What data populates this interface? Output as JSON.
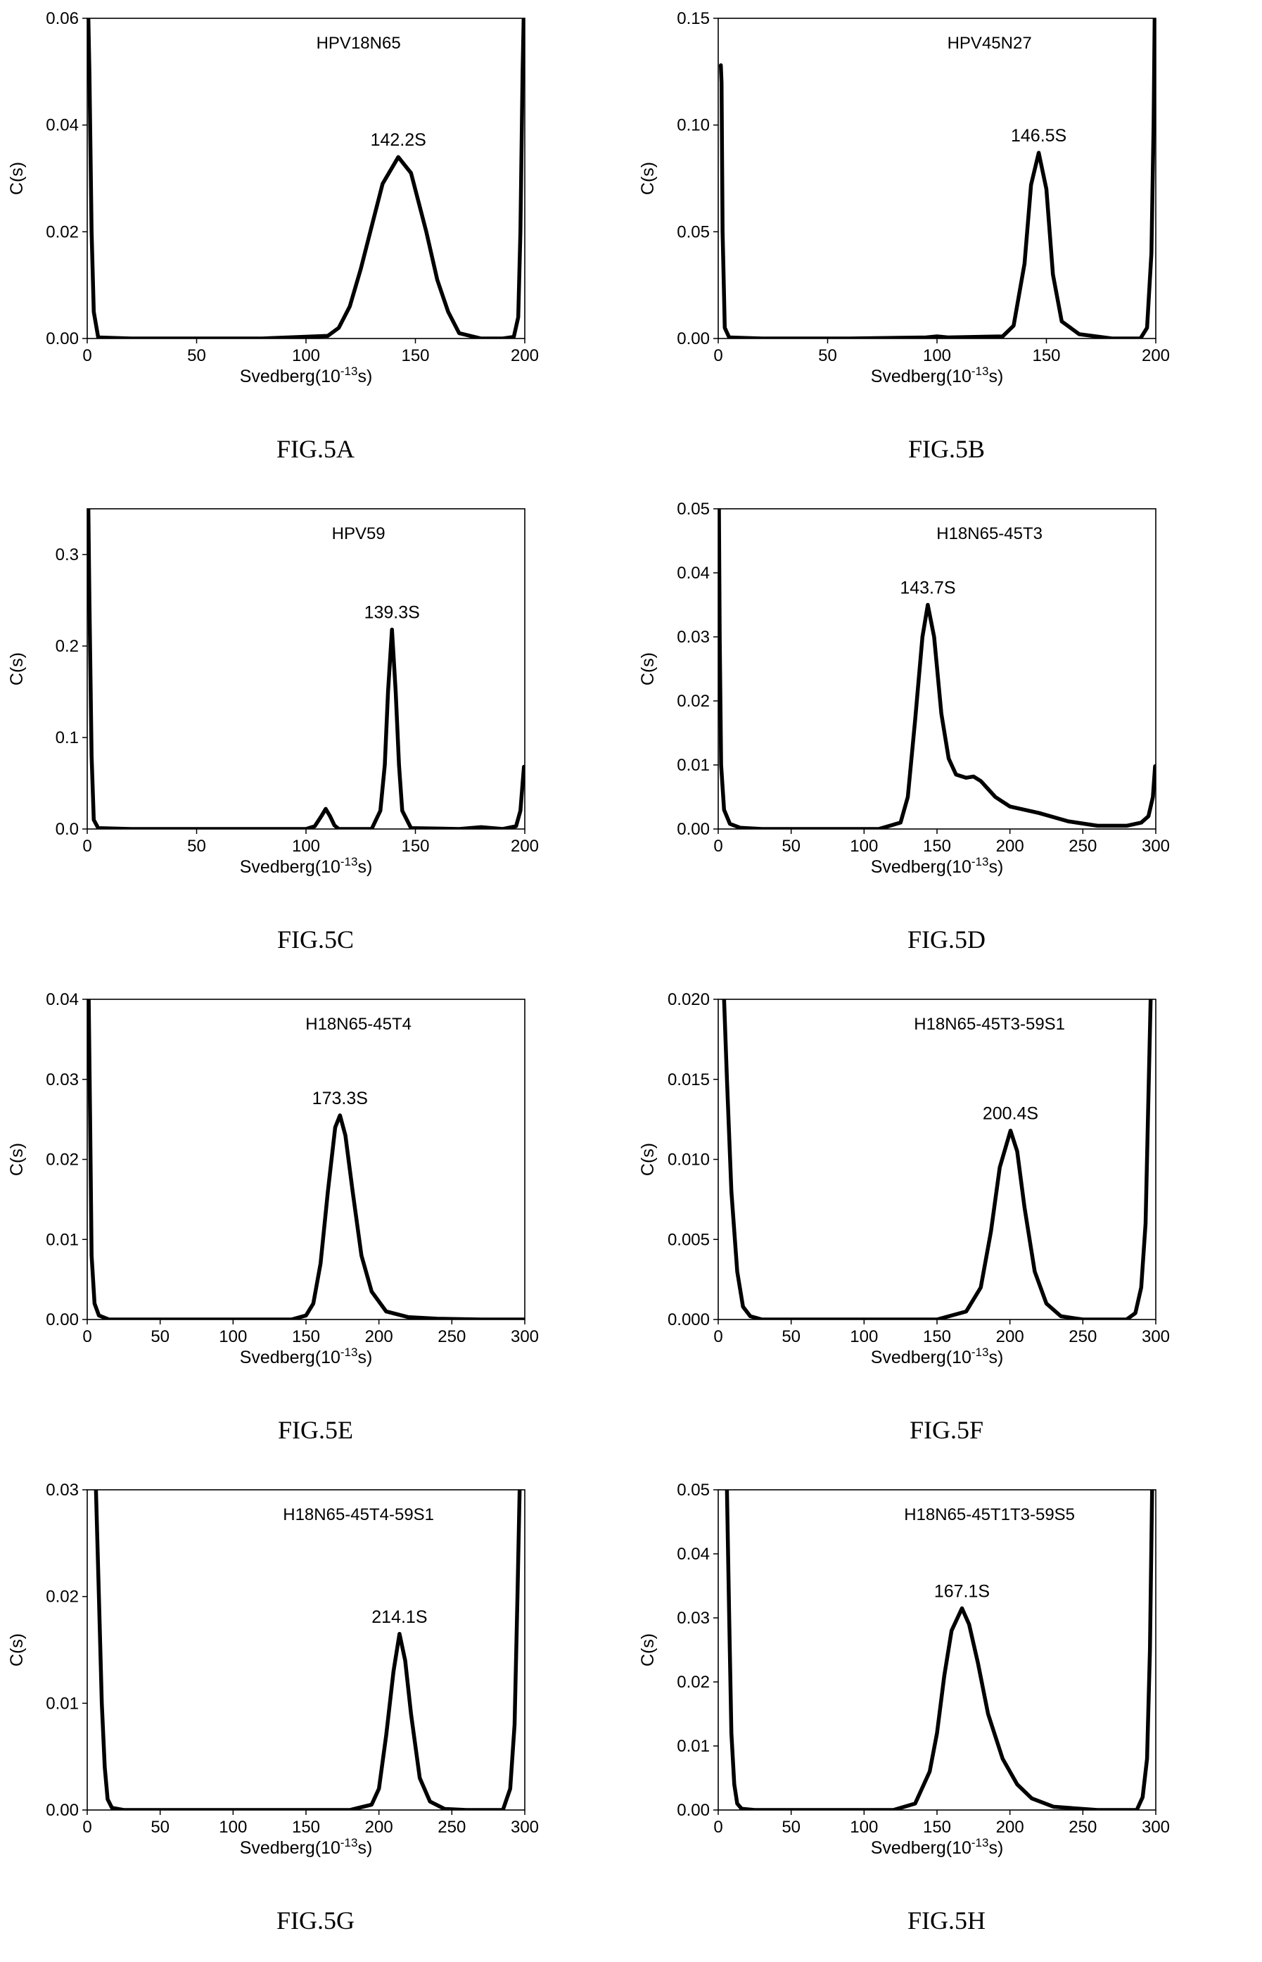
{
  "figure_panels": [
    {
      "caption": "FIG.5A"
    },
    {
      "caption": "FIG.5B"
    },
    {
      "caption": "FIG.5C"
    },
    {
      "caption": "FIG.5D"
    },
    {
      "caption": "FIG.5E"
    },
    {
      "caption": "FIG.5F"
    },
    {
      "caption": "FIG.5G"
    },
    {
      "caption": "FIG.5H"
    }
  ],
  "chart_data": [
    {
      "type": "line",
      "caption": "FIG.5A",
      "sample_label": "HPV18N65",
      "peak_label": "142.2S",
      "xlabel_main": "Svedberg(10",
      "xlabel_exp": "-13",
      "xlabel_tail": "s)",
      "ylabel": "C(s)",
      "xlim": [
        0,
        200
      ],
      "ylim": [
        0,
        0.06
      ],
      "xticks": [
        0,
        50,
        100,
        150,
        200
      ],
      "xtick_labels": [
        "0",
        "50",
        "100",
        "150",
        "200"
      ],
      "yticks": [
        0,
        0.02,
        0.04,
        0.06
      ],
      "ytick_labels": [
        "0.00",
        "0.02",
        "0.04",
        "0.06"
      ],
      "series": [
        {
          "x": [
            0.5,
            1,
            2,
            3,
            5,
            20,
            80,
            110,
            115,
            120,
            125,
            130,
            135,
            142.2,
            148,
            155,
            160,
            165,
            170,
            180,
            190,
            195,
            197,
            198,
            199,
            199.5
          ],
          "y": [
            0.06,
            0.05,
            0.02,
            0.005,
            0.0002,
            0,
            0,
            0.0005,
            0.002,
            0.006,
            0.013,
            0.021,
            0.029,
            0.034,
            0.031,
            0.02,
            0.011,
            0.005,
            0.001,
            0,
            0,
            0.0003,
            0.004,
            0.02,
            0.05,
            0.06
          ]
        }
      ]
    },
    {
      "type": "line",
      "caption": "FIG.5B",
      "sample_label": "HPV45N27",
      "peak_label": "146.5S",
      "xlabel_main": "Svedberg(10",
      "xlabel_exp": "-13",
      "xlabel_tail": "s)",
      "ylabel": "C(s)",
      "xlim": [
        0,
        200
      ],
      "ylim": [
        0,
        0.15
      ],
      "xticks": [
        0,
        50,
        100,
        150,
        200
      ],
      "xtick_labels": [
        "0",
        "50",
        "100",
        "150",
        "200"
      ],
      "yticks": [
        0,
        0.05,
        0.1,
        0.15
      ],
      "ytick_labels": [
        "0.00",
        "0.05",
        "0.10",
        "0.15"
      ],
      "series": [
        {
          "x": [
            1.2,
            1.5,
            2,
            3,
            5,
            20,
            60,
            95,
            100,
            105,
            130,
            135,
            140,
            143,
            146.5,
            150,
            153,
            157,
            165,
            180,
            193,
            196,
            198,
            199,
            199.5
          ],
          "y": [
            0.128,
            0.12,
            0.05,
            0.005,
            0.0005,
            0,
            0,
            0.0005,
            0.001,
            0.0005,
            0.001,
            0.006,
            0.035,
            0.072,
            0.087,
            0.07,
            0.03,
            0.008,
            0.002,
            0,
            0,
            0.005,
            0.04,
            0.1,
            0.15
          ]
        }
      ]
    },
    {
      "type": "line",
      "caption": "FIG.5C",
      "sample_label": "HPV59",
      "peak_label": "139.3S",
      "xlabel_main": "Svedberg(10",
      "xlabel_exp": "-13",
      "xlabel_tail": "s)",
      "ylabel": "C(s)",
      "xlim": [
        0,
        200
      ],
      "ylim": [
        0,
        0.35
      ],
      "xticks": [
        0,
        50,
        100,
        150,
        200
      ],
      "xtick_labels": [
        "0",
        "50",
        "100",
        "150",
        "200"
      ],
      "yticks": [
        0,
        0.1,
        0.2,
        0.3
      ],
      "ytick_labels": [
        "0.0",
        "0.1",
        "0.2",
        "0.3"
      ],
      "series": [
        {
          "x": [
            0.5,
            1,
            2,
            3,
            5,
            20,
            100,
            104,
            107,
            109,
            111,
            113,
            115,
            130,
            134,
            136,
            137.5,
            139.3,
            141,
            142.5,
            144,
            148,
            170,
            180,
            190,
            196,
            198,
            199,
            199.6
          ],
          "y": [
            0.35,
            0.25,
            0.08,
            0.01,
            0.001,
            0,
            0,
            0.003,
            0.014,
            0.022,
            0.014,
            0.004,
            0,
            0,
            0.02,
            0.07,
            0.15,
            0.218,
            0.15,
            0.07,
            0.02,
            0.001,
            0,
            0.002,
            0,
            0.003,
            0.02,
            0.05,
            0.068
          ]
        }
      ]
    },
    {
      "type": "line",
      "caption": "FIG.5D",
      "sample_label": "H18N65-45T3",
      "peak_label": "143.7S",
      "xlabel_main": "Svedberg(10",
      "xlabel_exp": "-13",
      "xlabel_tail": "s)",
      "ylabel": "C(s)",
      "xlim": [
        0,
        300
      ],
      "ylim": [
        0,
        0.05
      ],
      "xticks": [
        0,
        50,
        100,
        150,
        200,
        250,
        300
      ],
      "xtick_labels": [
        "0",
        "50",
        "100",
        "150",
        "200",
        "250",
        "300"
      ],
      "yticks": [
        0,
        0.01,
        0.02,
        0.03,
        0.04,
        0.05
      ],
      "ytick_labels": [
        "0.00",
        "0.01",
        "0.02",
        "0.03",
        "0.04",
        "0.05"
      ],
      "series": [
        {
          "x": [
            0.5,
            1,
            2,
            4,
            8,
            15,
            30,
            110,
            125,
            130,
            135,
            140,
            143.7,
            148,
            153,
            158,
            163,
            170,
            175,
            180,
            190,
            200,
            220,
            240,
            260,
            280,
            290,
            295,
            298,
            299.5
          ],
          "y": [
            0.05,
            0.03,
            0.01,
            0.003,
            0.0008,
            0.0002,
            0,
            0,
            0.001,
            0.005,
            0.017,
            0.03,
            0.035,
            0.03,
            0.018,
            0.011,
            0.0085,
            0.008,
            0.0082,
            0.0075,
            0.005,
            0.0035,
            0.0025,
            0.0012,
            0.0005,
            0.0005,
            0.001,
            0.002,
            0.005,
            0.0098
          ]
        }
      ]
    },
    {
      "type": "line",
      "caption": "FIG.5E",
      "sample_label": "H18N65-45T4",
      "peak_label": "173.3S",
      "xlabel_main": "Svedberg(10",
      "xlabel_exp": "-13",
      "xlabel_tail": "s)",
      "ylabel": "C(s)",
      "xlim": [
        0,
        300
      ],
      "ylim": [
        0,
        0.04
      ],
      "xticks": [
        0,
        50,
        100,
        150,
        200,
        250,
        300
      ],
      "xtick_labels": [
        "0",
        "50",
        "100",
        "150",
        "200",
        "250",
        "300"
      ],
      "yticks": [
        0,
        0.01,
        0.02,
        0.03,
        0.04
      ],
      "ytick_labels": [
        "0.00",
        "0.01",
        "0.02",
        "0.03",
        "0.04"
      ],
      "series": [
        {
          "x": [
            1,
            2,
            3,
            5,
            8,
            15,
            100,
            140,
            150,
            155,
            160,
            165,
            170,
            173.3,
            177,
            182,
            188,
            195,
            205,
            220,
            240,
            270,
            300
          ],
          "y": [
            0.04,
            0.025,
            0.008,
            0.002,
            0.0005,
            0,
            0,
            0,
            0.0005,
            0.002,
            0.007,
            0.016,
            0.024,
            0.0255,
            0.023,
            0.016,
            0.008,
            0.0035,
            0.001,
            0.0003,
            0.0001,
            0,
            0
          ]
        }
      ]
    },
    {
      "type": "line",
      "caption": "FIG.5F",
      "sample_label": "H18N65-45T3-59S1",
      "peak_label": "200.4S",
      "xlabel_main": "Svedberg(10",
      "xlabel_exp": "-13",
      "xlabel_tail": "s)",
      "ylabel": "C(s)",
      "xlim": [
        0,
        300
      ],
      "ylim": [
        0,
        0.02
      ],
      "xticks": [
        0,
        50,
        100,
        150,
        200,
        250,
        300
      ],
      "xtick_labels": [
        "0",
        "50",
        "100",
        "150",
        "200",
        "250",
        "300"
      ],
      "yticks": [
        0,
        0.005,
        0.01,
        0.015,
        0.02
      ],
      "ytick_labels": [
        "0.000",
        "0.005",
        "0.010",
        "0.015",
        "0.020"
      ],
      "series": [
        {
          "x": [
            4,
            6,
            9,
            13,
            17,
            22,
            30,
            150,
            170,
            180,
            187,
            193,
            200.4,
            205,
            210,
            217,
            225,
            235,
            250,
            280,
            286,
            290,
            293,
            295,
            296.5
          ],
          "y": [
            0.02,
            0.015,
            0.008,
            0.003,
            0.0008,
            0.0002,
            0,
            0,
            0.0005,
            0.002,
            0.0055,
            0.0095,
            0.0118,
            0.0105,
            0.007,
            0.003,
            0.001,
            0.0002,
            0,
            0,
            0.0004,
            0.002,
            0.006,
            0.014,
            0.02
          ]
        }
      ]
    },
    {
      "type": "line",
      "caption": "FIG.5G",
      "sample_label": "H18N65-45T4-59S1",
      "peak_label": "214.1S",
      "xlabel_main": "Svedberg(10",
      "xlabel_exp": "-13",
      "xlabel_tail": "s)",
      "ylabel": "C(s)",
      "xlim": [
        0,
        300
      ],
      "ylim": [
        0,
        0.03
      ],
      "xticks": [
        0,
        50,
        100,
        150,
        200,
        250,
        300
      ],
      "xtick_labels": [
        "0",
        "50",
        "100",
        "150",
        "200",
        "250",
        "300"
      ],
      "yticks": [
        0,
        0.01,
        0.02,
        0.03
      ],
      "ytick_labels": [
        "0.00",
        "0.01",
        "0.02",
        "0.03"
      ],
      "series": [
        {
          "x": [
            6,
            8,
            10,
            12,
            14,
            17,
            25,
            180,
            195,
            200,
            205,
            210,
            214.1,
            218,
            222,
            228,
            235,
            245,
            260,
            285,
            290,
            293,
            295,
            296.5
          ],
          "y": [
            0.03,
            0.02,
            0.01,
            0.004,
            0.001,
            0.0002,
            0,
            0,
            0.0005,
            0.002,
            0.007,
            0.013,
            0.0165,
            0.014,
            0.009,
            0.003,
            0.0008,
            0.0001,
            0,
            0,
            0.002,
            0.008,
            0.02,
            0.03
          ]
        }
      ]
    },
    {
      "type": "line",
      "caption": "FIG.5H",
      "sample_label": "H18N65-45T1T3-59S5",
      "peak_label": "167.1S",
      "xlabel_main": "Svedberg(10",
      "xlabel_exp": "-13",
      "xlabel_tail": "s)",
      "ylabel": "C(s)",
      "xlim": [
        0,
        300
      ],
      "ylim": [
        0,
        0.05
      ],
      "xticks": [
        0,
        50,
        100,
        150,
        200,
        250,
        300
      ],
      "xtick_labels": [
        "0",
        "50",
        "100",
        "150",
        "200",
        "250",
        "300"
      ],
      "yticks": [
        0,
        0.01,
        0.02,
        0.03,
        0.04,
        0.05
      ],
      "ytick_labels": [
        "0.00",
        "0.01",
        "0.02",
        "0.03",
        "0.04",
        "0.05"
      ],
      "series": [
        {
          "x": [
            6,
            7.5,
            9,
            11,
            13,
            16,
            25,
            120,
            135,
            145,
            150,
            155,
            160,
            167.1,
            172,
            178,
            185,
            195,
            205,
            215,
            230,
            260,
            287,
            291,
            294,
            296,
            297.5
          ],
          "y": [
            0.05,
            0.03,
            0.012,
            0.004,
            0.001,
            0.0002,
            0,
            0,
            0.001,
            0.006,
            0.012,
            0.021,
            0.028,
            0.0315,
            0.029,
            0.023,
            0.015,
            0.008,
            0.004,
            0.0018,
            0.0005,
            0,
            0,
            0.002,
            0.008,
            0.025,
            0.05
          ]
        }
      ]
    }
  ]
}
